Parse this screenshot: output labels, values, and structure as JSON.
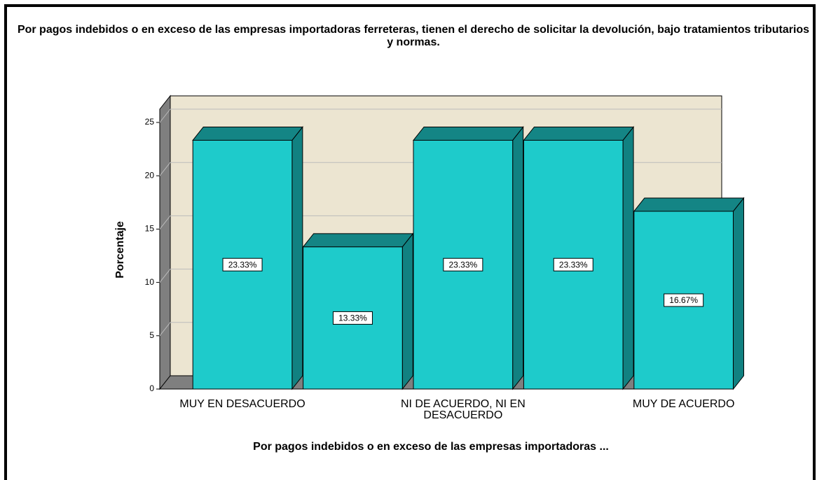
{
  "chart_data": {
    "type": "bar3d",
    "title": "Por pagos indebidos o en exceso de las empresas importadoras ferreteras, tienen el derecho de solicitar la devolución, bajo tratamientos tributarios y normas.",
    "x_label": "Por pagos indebidos o en exceso de las empresas importadoras ...",
    "y_label": "Porcentaje",
    "categories": [
      "MUY EN DESACUERDO",
      null,
      "NI DE ACUERDO, NI EN DESACUERDO",
      null,
      "MUY DE ACUERDO"
    ],
    "values": [
      23.33,
      13.33,
      23.33,
      23.33,
      16.67
    ],
    "value_labels": [
      "23.33%",
      "13.33%",
      "23.33%",
      "23.33%",
      "16.67%"
    ],
    "color": "#1ecbcb",
    "ylim": [
      0,
      25
    ],
    "yticks": [
      0,
      5,
      10,
      15,
      20,
      25
    ],
    "grid": true
  }
}
